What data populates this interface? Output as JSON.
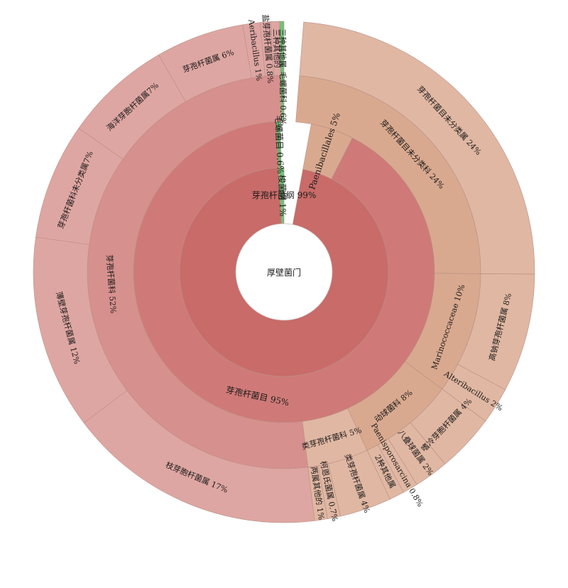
{
  "chart_data": {
    "type": "sunburst",
    "center_label": "厚壁菌门",
    "colors": {
      "red_level1": "#c86b69",
      "red_level2": "#cf7a78",
      "red_level3": "#d6908d",
      "red_level4": "#dea6a2",
      "tan_level3": "#d9a98f",
      "tan_level4": "#e0b7a2",
      "green": "#6fc27a",
      "green_dark": "#5fb56b"
    },
    "rings": [
      {
        "level": 1,
        "segments": [
          {
            "label": "芽孢杆菌纲 99%",
            "start": 10.44,
            "end": 356.9,
            "color": "red_level1"
          },
          {
            "label": "梭菌纲 1%",
            "start": 356.9,
            "end": 360.0,
            "color": "green"
          }
        ]
      },
      {
        "level": 2,
        "segments": [
          {
            "label": "芽孢杆菌目 95%",
            "start": 27.0,
            "end": 357.0,
            "color": "red_level2"
          },
          {
            "label": "Paenibacillales 5%",
            "start": 10.44,
            "end": 27.0,
            "color": "tan_level3"
          },
          {
            "label": "毛螺菌目 0.6%",
            "start": 357.0,
            "end": 358.5,
            "color": "green_dark"
          }
        ]
      },
      {
        "level": 3,
        "segments": [
          {
            "label": "芽孢杆菌目未分类科 24%",
            "start": 4.5,
            "end": 90.5,
            "color": "tan_level3"
          },
          {
            "label": "Marinococcaceae 10%",
            "start": 90.5,
            "end": 126.5,
            "color": "tan_level3"
          },
          {
            "label": "动球菌科 8%",
            "start": 126.5,
            "end": 155.0,
            "color": "tan_level3"
          },
          {
            "label": "类芽孢杆菌科 5%",
            "start": 155.0,
            "end": 173.0,
            "color": "tan_level4"
          },
          {
            "label": "芽孢杆菌科 52%",
            "start": 173.0,
            "end": 359.0,
            "color": "red_level3"
          },
          {
            "label": "毛螺菌科 0.6%",
            "start": 359.0,
            "end": 360.0,
            "color": "green"
          }
        ]
      },
      {
        "level": 4,
        "segments": [
          {
            "label": "芽孢杆菌目未分类属 24%",
            "start": 4.5,
            "end": 90.5,
            "color": "tan_level4"
          },
          {
            "label": "高钠芽孢杆菌属 8%",
            "start": 90.5,
            "end": 118.0,
            "color": "tan_level4"
          },
          {
            "label": "Alteribacillus 2%",
            "start": 118.0,
            "end": 126.5,
            "color": "tan_level4"
          },
          {
            "label": "嗜冷芽胞杆菌属 4%",
            "start": 126.5,
            "end": 140.0,
            "color": "tan_level4"
          },
          {
            "label": "八叠球菌属 2%",
            "start": 140.0,
            "end": 148.0,
            "color": "tan_level4"
          },
          {
            "label": "Paenisporosarcina 0.8%",
            "start": 148.0,
            "end": 151.5,
            "color": "tan_level4"
          },
          {
            "label": "2种其他属",
            "start": 151.5,
            "end": 155.0,
            "color": "tan_level4"
          },
          {
            "label": "类芽孢杆菌属 4%",
            "start": 155.0,
            "end": 167.0,
            "color": "tan_level4"
          },
          {
            "label": "柯恩氏菌属 0.7%",
            "start": 167.0,
            "end": 170.0,
            "color": "tan_level4"
          },
          {
            "label": "两属其他的 1%",
            "start": 170.0,
            "end": 173.0,
            "color": "tan_level4"
          },
          {
            "label": "枝芽胞杆菌属 17%",
            "start": 173.0,
            "end": 233.0,
            "color": "red_level4"
          },
          {
            "label": "薄壁芽孢杆菌属 12%",
            "start": 233.0,
            "end": 278.0,
            "color": "red_level4"
          },
          {
            "label": "芽孢杆菌科未分类属7%",
            "start": 278.0,
            "end": 305.0,
            "color": "red_level4"
          },
          {
            "label": "海洋芽胞杆菌属7%",
            "start": 305.0,
            "end": 330.0,
            "color": "red_level4"
          },
          {
            "label": "芽孢杆菌属 6%",
            "start": 330.0,
            "end": 350.5,
            "color": "red_level4"
          },
          {
            "label": "Aeribacillus 1%",
            "start": 350.5,
            "end": 354.5,
            "color": "red_level4"
          },
          {
            "label": "盐芽孢杆菌属 0.8%",
            "start": 354.5,
            "end": 357.0,
            "color": "red_level4"
          },
          {
            "label": "三种其他的",
            "start": 357.0,
            "end": 359.0,
            "color": "red_level4"
          },
          {
            "label": "三种其他属",
            "start": 359.0,
            "end": 360.0,
            "color": "green"
          }
        ]
      }
    ]
  }
}
